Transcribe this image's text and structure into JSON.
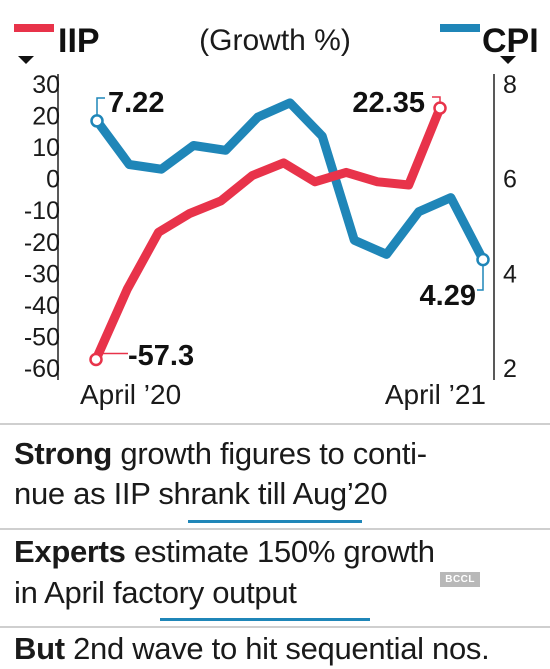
{
  "chart_data": {
    "type": "line",
    "title": "(Growth %)",
    "x_labels": [
      "April ’20",
      "April ’21"
    ],
    "left_axis": {
      "ticks": [
        30,
        20,
        10,
        0,
        -10,
        -20,
        -30,
        -40,
        -50,
        -60
      ],
      "range": [
        -60,
        30
      ]
    },
    "right_axis": {
      "ticks": [
        8,
        6,
        4,
        2
      ],
      "range": [
        2,
        8
      ]
    },
    "series": [
      {
        "name": "IIP",
        "axis": "left",
        "color": "#e8334a",
        "values": [
          -57.3,
          -35,
          -17,
          -11,
          -7,
          1,
          5,
          -1,
          2,
          -1,
          -2,
          22.35
        ],
        "labels": {
          "first": "-57.3",
          "last": "22.35"
        }
      },
      {
        "name": "CPI",
        "axis": "right",
        "color": "#1f86b8",
        "values": [
          7.22,
          6.3,
          6.2,
          6.7,
          6.6,
          7.3,
          7.6,
          6.9,
          4.7,
          4.4,
          5.3,
          5.6,
          4.29
        ],
        "labels": {
          "first": "7.22",
          "last": "4.29"
        }
      }
    ]
  },
  "notes": [
    {
      "bold": "Strong",
      "text": " growth figures to conti-"
    },
    {
      "bold": "",
      "text": "nue as IIP shrank till Aug’20"
    },
    {
      "bold": "Experts",
      "text": " estimate 150% growth"
    },
    {
      "bold": "",
      "text": "in April factory output"
    },
    {
      "bold": "But",
      "text": " 2nd wave to hit sequential nos."
    }
  ],
  "watermark": "BCCL"
}
